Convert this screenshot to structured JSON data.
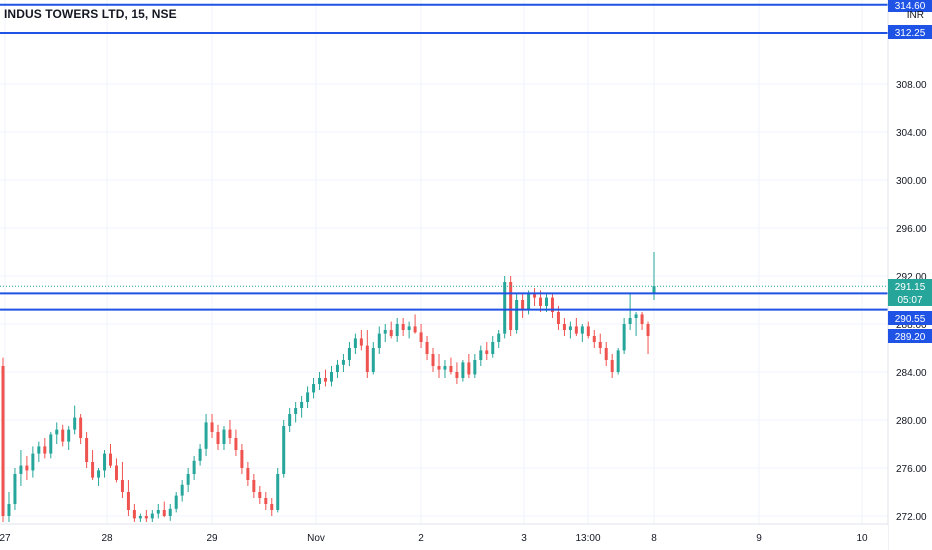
{
  "title": "INDUS TOWERS LTD, 15, NSE",
  "currency": "INR",
  "colors": {
    "up": "#26a69a",
    "down": "#ef5350",
    "hline": "#1e53e5",
    "grid": "#f0f3fa",
    "axis_text": "#131722",
    "price_label": "#26a69a"
  },
  "price_axis": {
    "ticks": [
      "308.00",
      "304.00",
      "300.00",
      "296.00",
      "292.00",
      "288.00",
      "284.00",
      "280.00",
      "276.00",
      "272.00"
    ],
    "tick_values": [
      308,
      304,
      300,
      296,
      292,
      288,
      284,
      280,
      276,
      272
    ]
  },
  "time_axis": {
    "labels": [
      "27",
      "28",
      "29",
      "Nov",
      "2",
      "3",
      "13:00",
      "8",
      "9",
      "10"
    ]
  },
  "horizontal_lines": [
    {
      "value": 314.6,
      "label": "314.60"
    },
    {
      "value": 312.25,
      "label": "312.25"
    },
    {
      "value": 290.55,
      "label": "290.55"
    },
    {
      "value": 289.2,
      "label": "289.20"
    }
  ],
  "last_price": {
    "value": 291.15,
    "label": "291.15",
    "countdown": "05:07"
  },
  "chart_data": {
    "type": "candlestick",
    "title": "INDUS TOWERS LTD, 15, NSE",
    "ylim": [
      271.5,
      316
    ],
    "x_labels": [
      "27",
      "28",
      "29",
      "Nov",
      "2",
      "3",
      "13:00",
      "8",
      "9",
      "10"
    ],
    "candles": [
      [
        284.5,
        285.2,
        271.5,
        272.0
      ],
      [
        272.0,
        274.0,
        271.5,
        273.0
      ],
      [
        273.0,
        276.0,
        272.5,
        275.5
      ],
      [
        275.5,
        277.5,
        274.5,
        276.2
      ],
      [
        276.2,
        277.0,
        275.0,
        275.8
      ],
      [
        275.8,
        277.8,
        275.2,
        277.2
      ],
      [
        277.2,
        278.2,
        276.5,
        277.8
      ],
      [
        277.8,
        278.5,
        276.8,
        277.2
      ],
      [
        277.2,
        279.0,
        276.8,
        278.8
      ],
      [
        278.8,
        279.8,
        278.0,
        279.2
      ],
      [
        279.2,
        279.6,
        277.8,
        278.2
      ],
      [
        278.2,
        279.5,
        277.5,
        279.2
      ],
      [
        279.2,
        281.2,
        278.8,
        280.2
      ],
      [
        280.2,
        280.5,
        278.0,
        278.5
      ],
      [
        278.5,
        279.0,
        276.0,
        276.5
      ],
      [
        276.5,
        277.5,
        275.0,
        275.2
      ],
      [
        275.2,
        276.0,
        274.5,
        275.8
      ],
      [
        275.8,
        277.5,
        275.2,
        277.2
      ],
      [
        277.2,
        278.0,
        276.0,
        276.2
      ],
      [
        276.2,
        276.8,
        274.8,
        275.0
      ],
      [
        275.0,
        276.5,
        273.5,
        274.0
      ],
      [
        274.0,
        275.0,
        272.0,
        272.5
      ],
      [
        272.5,
        273.0,
        271.5,
        271.8
      ],
      [
        271.8,
        272.2,
        271.5,
        272.0
      ],
      [
        272.0,
        272.5,
        271.5,
        271.8
      ],
      [
        271.8,
        272.5,
        271.5,
        272.2
      ],
      [
        272.2,
        273.0,
        271.8,
        272.5
      ],
      [
        272.5,
        273.2,
        271.9,
        272.0
      ],
      [
        272.0,
        273.0,
        271.6,
        272.6
      ],
      [
        272.6,
        274.0,
        272.3,
        273.7
      ],
      [
        273.7,
        275.0,
        273.2,
        274.6
      ],
      [
        274.6,
        276.0,
        274.0,
        275.5
      ],
      [
        275.5,
        277.0,
        275.0,
        276.6
      ],
      [
        276.6,
        278.0,
        276.2,
        277.6
      ],
      [
        277.6,
        280.5,
        277.0,
        279.8
      ],
      [
        279.8,
        280.5,
        278.5,
        279.0
      ],
      [
        279.0,
        279.6,
        277.5,
        278.0
      ],
      [
        278.0,
        279.5,
        277.5,
        279.2
      ],
      [
        279.2,
        280.0,
        278.0,
        278.5
      ],
      [
        278.5,
        279.2,
        277.0,
        277.5
      ],
      [
        277.5,
        278.0,
        275.5,
        276.0
      ],
      [
        276.0,
        276.5,
        274.5,
        275.0
      ],
      [
        275.0,
        275.5,
        273.5,
        274.0
      ],
      [
        274.0,
        274.5,
        273.0,
        273.5
      ],
      [
        273.5,
        274.0,
        272.5,
        273.0
      ],
      [
        273.0,
        273.5,
        272.0,
        272.5
      ],
      [
        272.5,
        276.0,
        272.3,
        275.5
      ],
      [
        275.5,
        280.0,
        275.2,
        279.5
      ],
      [
        279.5,
        281.0,
        279.0,
        280.5
      ],
      [
        280.5,
        281.5,
        279.8,
        281.0
      ],
      [
        281.0,
        282.0,
        280.2,
        281.5
      ],
      [
        281.5,
        282.8,
        281.0,
        282.3
      ],
      [
        282.3,
        283.5,
        281.8,
        283.0
      ],
      [
        283.0,
        284.0,
        282.5,
        283.5
      ],
      [
        283.5,
        284.2,
        282.8,
        283.2
      ],
      [
        283.2,
        284.5,
        282.8,
        284.0
      ],
      [
        284.0,
        285.0,
        283.5,
        284.6
      ],
      [
        284.6,
        285.5,
        284.0,
        285.0
      ],
      [
        285.0,
        286.5,
        284.5,
        286.0
      ],
      [
        286.0,
        287.2,
        285.5,
        286.8
      ],
      [
        286.8,
        287.5,
        285.8,
        286.2
      ],
      [
        286.2,
        287.5,
        283.5,
        284.0
      ],
      [
        284.0,
        286.5,
        283.8,
        286.0
      ],
      [
        286.0,
        287.8,
        285.5,
        287.2
      ],
      [
        287.2,
        288.0,
        286.5,
        287.5
      ],
      [
        287.5,
        288.2,
        286.8,
        287.0
      ],
      [
        287.0,
        288.5,
        286.5,
        288.0
      ],
      [
        288.0,
        288.5,
        287.0,
        287.5
      ],
      [
        287.5,
        288.2,
        286.8,
        287.8
      ],
      [
        287.8,
        288.8,
        287.2,
        287.3
      ],
      [
        287.3,
        288.0,
        286.0,
        286.5
      ],
      [
        286.5,
        287.0,
        285.0,
        285.5
      ],
      [
        285.5,
        286.0,
        284.0,
        284.5
      ],
      [
        284.5,
        285.5,
        283.5,
        284.2
      ],
      [
        284.2,
        285.0,
        283.5,
        284.5
      ],
      [
        284.5,
        285.2,
        283.8,
        284.0
      ],
      [
        284.0,
        284.8,
        283.0,
        283.5
      ],
      [
        283.5,
        285.0,
        283.2,
        284.8
      ],
      [
        284.8,
        285.5,
        283.5,
        283.8
      ],
      [
        283.8,
        285.5,
        283.5,
        285.0
      ],
      [
        285.0,
        286.2,
        284.5,
        285.8
      ],
      [
        285.8,
        286.5,
        285.0,
        285.5
      ],
      [
        285.5,
        287.0,
        285.2,
        286.5
      ],
      [
        286.5,
        287.5,
        286.0,
        287.2
      ],
      [
        287.2,
        292.0,
        286.8,
        291.5
      ],
      [
        291.5,
        292.0,
        287.0,
        287.5
      ],
      [
        287.5,
        290.5,
        287.2,
        290.0
      ],
      [
        290.0,
        290.5,
        288.5,
        289.2
      ],
      [
        289.2,
        290.8,
        288.8,
        290.5
      ],
      [
        290.5,
        291.0,
        289.5,
        290.2
      ],
      [
        290.2,
        290.8,
        289.0,
        289.5
      ],
      [
        289.5,
        290.5,
        289.0,
        290.2
      ],
      [
        290.2,
        290.5,
        288.5,
        289.0
      ],
      [
        289.0,
        289.5,
        287.5,
        288.0
      ],
      [
        288.0,
        288.5,
        287.0,
        287.5
      ],
      [
        287.5,
        288.2,
        286.8,
        287.8
      ],
      [
        287.8,
        288.5,
        287.0,
        287.2
      ],
      [
        287.2,
        288.0,
        286.5,
        287.8
      ],
      [
        287.8,
        288.2,
        286.8,
        287.0
      ],
      [
        287.0,
        287.5,
        286.0,
        286.5
      ],
      [
        286.5,
        287.2,
        285.5,
        286.0
      ],
      [
        286.0,
        286.5,
        284.5,
        285.0
      ],
      [
        285.0,
        285.5,
        283.5,
        284.0
      ],
      [
        284.0,
        286.0,
        283.8,
        285.8
      ],
      [
        285.8,
        288.5,
        285.5,
        288.0
      ],
      [
        288.0,
        290.5,
        287.5,
        288.5
      ],
      [
        288.5,
        289.0,
        287.0,
        288.8
      ],
      [
        288.8,
        289.0,
        287.5,
        288.0
      ],
      [
        288.0,
        288.2,
        285.5,
        287.0
      ],
      [
        290.5,
        294.0,
        290.0,
        291.15
      ]
    ]
  }
}
